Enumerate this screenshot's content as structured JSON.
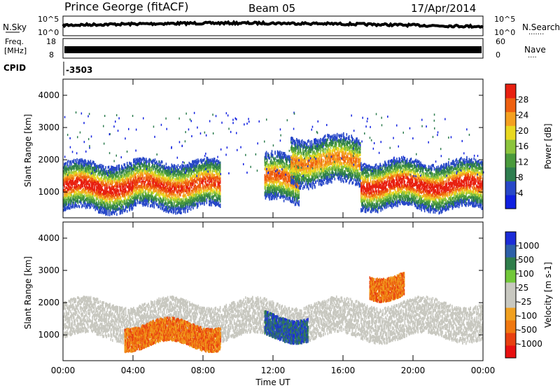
{
  "header": {
    "station": "Prince George (fitACF)",
    "beam": "Beam 05",
    "date": "17/Apr/2014"
  },
  "noise_panel": {
    "left_label": "N.Sky",
    "right_label": "N.Search",
    "left_ticks": [
      "10^5",
      "10^0"
    ],
    "right_ticks": [
      "10^5",
      "10^0"
    ],
    "dotted_marker": "·······"
  },
  "freq_panel": {
    "left_label_line1": "Freq.",
    "left_label_line2": "[MHz]",
    "left_ticks": [
      "18",
      "8"
    ],
    "right_label": "Nave",
    "right_ticks": [
      "60",
      "0"
    ],
    "dotted_marker": "····"
  },
  "cpid": {
    "label": "CPID",
    "value": "-3503"
  },
  "colors": {
    "power": [
      "#1020e0",
      "#2848c8",
      "#2e7d4f",
      "#4a9a3c",
      "#8cc43c",
      "#e8d820",
      "#f4a020",
      "#ee6010",
      "#e82010"
    ],
    "velocity": [
      "#1c2cd8",
      "#2d5fa8",
      "#2f7d4a",
      "#72c83a",
      "#c8c8c0",
      "#c8c8c0",
      "#f0a020",
      "#f07810",
      "#e84010",
      "#e81010"
    ]
  },
  "chart_data": [
    {
      "type": "heatmap",
      "title": "Power",
      "xlabel": "Time UT",
      "ylabel": "Slant Range [km]",
      "xlim": [
        "00:00",
        "24:00"
      ],
      "ylim": [
        200,
        4500
      ],
      "x_ticks": [
        "00:00",
        "04:00",
        "08:00",
        "12:00",
        "16:00",
        "20:00",
        "00:00"
      ],
      "y_ticks": [
        1000,
        2000,
        3000,
        4000
      ],
      "colorbar": {
        "label": "Power [dB]",
        "range": [
          0,
          32
        ],
        "ticks": [
          4,
          8,
          12,
          16,
          20,
          24,
          28
        ]
      },
      "backscatter_bands": [
        {
          "t_start": 0.0,
          "t_end": 4.0,
          "range_center_km": 1200,
          "peak_db": 28
        },
        {
          "t_start": 4.0,
          "t_end": 9.0,
          "range_center_km": 1250,
          "peak_db": 26
        },
        {
          "t_start": 11.5,
          "t_end": 13.5,
          "range_center_km": 1450,
          "peak_db": 24
        },
        {
          "t_start": 13.0,
          "t_end": 17.0,
          "range_center_km": 2000,
          "peak_db": 22
        },
        {
          "t_start": 17.0,
          "t_end": 24.0,
          "range_center_km": 1250,
          "peak_db": 28
        }
      ]
    },
    {
      "type": "heatmap",
      "title": "Velocity",
      "xlabel": "Time UT",
      "ylabel": "Slant Range [km]",
      "xlim": [
        "00:00",
        "24:00"
      ],
      "ylim": [
        200,
        4500
      ],
      "x_ticks": [
        "00:00",
        "04:00",
        "08:00",
        "12:00",
        "16:00",
        "20:00",
        "00:00"
      ],
      "y_ticks": [
        1000,
        2000,
        3000,
        4000
      ],
      "colorbar": {
        "label": "Velocity [m s-1]",
        "range": [
          -1200,
          1200
        ],
        "ticks": [
          "1000",
          "500",
          "100",
          "25",
          "-25",
          "-100",
          "-500",
          "-1000"
        ]
      },
      "regions": [
        {
          "t_start": 0.0,
          "t_end": 24.0,
          "range_center_km": 1500,
          "velocity": "ground scatter (±25)"
        },
        {
          "t_start": 3.5,
          "t_end": 9.0,
          "range_center_km": 1050,
          "velocity": "-500"
        },
        {
          "t_start": 11.5,
          "t_end": 14.0,
          "range_center_km": 1300,
          "velocity": "+500"
        },
        {
          "t_start": 17.5,
          "t_end": 19.5,
          "range_center_km": 2600,
          "velocity": "-500"
        }
      ]
    }
  ]
}
